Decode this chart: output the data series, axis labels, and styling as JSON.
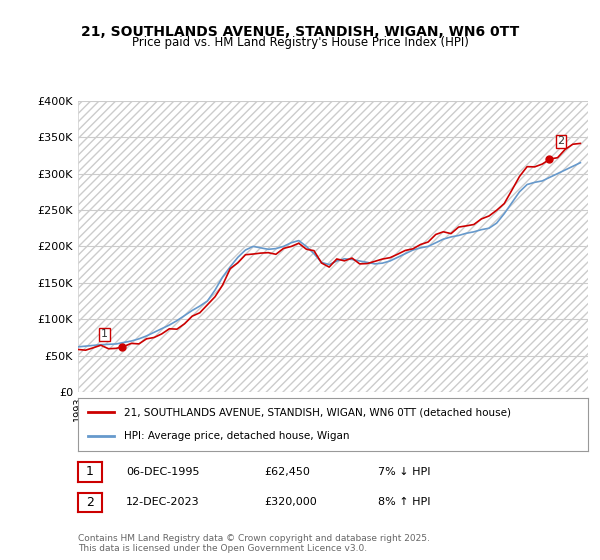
{
  "title": "21, SOUTHLANDS AVENUE, STANDISH, WIGAN, WN6 0TT",
  "subtitle": "Price paid vs. HM Land Registry's House Price Index (HPI)",
  "ylim": [
    0,
    400000
  ],
  "yticks": [
    0,
    50000,
    100000,
    150000,
    200000,
    250000,
    300000,
    350000,
    400000
  ],
  "ytick_labels": [
    "£0",
    "£50K",
    "£100K",
    "£150K",
    "£200K",
    "£250K",
    "£300K",
    "£350K",
    "£400K"
  ],
  "xlabel": "",
  "legend_line1": "21, SOUTHLANDS AVENUE, STANDISH, WIGAN, WN6 0TT (detached house)",
  "legend_line2": "HPI: Average price, detached house, Wigan",
  "line_color_red": "#cc0000",
  "line_color_blue": "#6699cc",
  "point1_label": "1",
  "point1_date": "06-DEC-1995",
  "point1_price": "£62,450",
  "point1_hpi": "7% ↓ HPI",
  "point2_label": "2",
  "point2_date": "12-DEC-2023",
  "point2_price": "£320,000",
  "point2_hpi": "8% ↑ HPI",
  "footer": "Contains HM Land Registry data © Crown copyright and database right 2025.\nThis data is licensed under the Open Government Licence v3.0.",
  "background_hatch_color": "#dddddd",
  "hatch_pattern": "////",
  "grid_color": "#cccccc"
}
